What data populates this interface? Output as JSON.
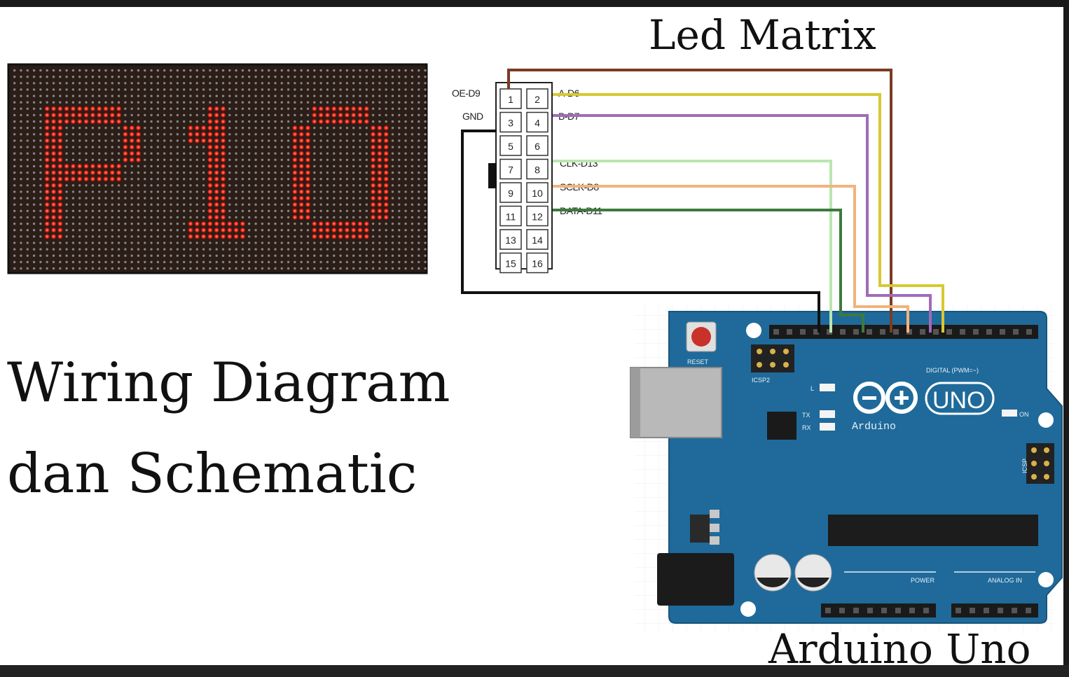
{
  "titles": {
    "led_matrix": "Led Matrix",
    "wiring_line1": "Wiring Diagram",
    "wiring_line2": "dan Schematic",
    "arduino": "Arduino Uno"
  },
  "panel_text": "P10",
  "connector": {
    "pins": [
      [
        "1",
        "2"
      ],
      [
        "3",
        "4"
      ],
      [
        "5",
        "6"
      ],
      [
        "7",
        "8"
      ],
      [
        "9",
        "10"
      ],
      [
        "11",
        "12"
      ],
      [
        "13",
        "14"
      ],
      [
        "15",
        "16"
      ]
    ],
    "left_labels": {
      "oe": "OE-D9",
      "gnd": "GND"
    },
    "right_labels": {
      "a": "A-D6",
      "b": "B-D7",
      "clk": "CLK-D13",
      "sclk": "SCLK-D8",
      "data": "DATA-D11"
    }
  },
  "board": {
    "reset": "RESET",
    "icsp2": "ICSP2",
    "l": "L",
    "tx": "TX",
    "rx": "RX",
    "on": "ON",
    "uno": "UNO",
    "arduino_brand": "Arduino",
    "icsp": "ICSP",
    "digital": "DIGITAL (PWM=~)",
    "power": "POWER",
    "analog": "ANALOG IN"
  },
  "colors": {
    "board_blue": "#1f6a9a",
    "led_red": "#ff2a1a",
    "wire_brown": "#7a3b22",
    "wire_yellow": "#d8c832",
    "wire_purple": "#a06bb8",
    "wire_lightgreen": "#b9e6b0",
    "wire_orange": "#f2b37c",
    "wire_darkgreen": "#3d7a3d",
    "wire_black": "#111111"
  }
}
